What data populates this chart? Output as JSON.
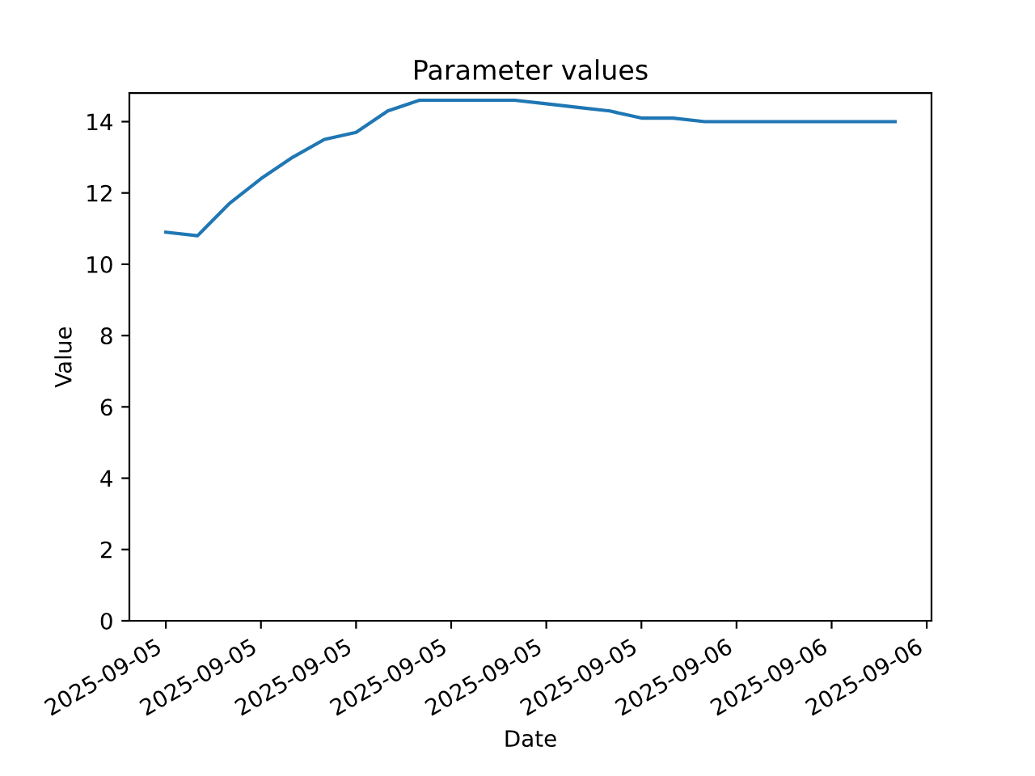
{
  "chart_data": {
    "type": "line",
    "title": "Parameter values",
    "xlabel": "Date",
    "ylabel": "Value",
    "x": [
      "2025-09-05T06:00",
      "2025-09-05T07:00",
      "2025-09-05T08:00",
      "2025-09-05T09:00",
      "2025-09-05T10:00",
      "2025-09-05T11:00",
      "2025-09-05T12:00",
      "2025-09-05T13:00",
      "2025-09-05T14:00",
      "2025-09-05T15:00",
      "2025-09-05T16:00",
      "2025-09-05T17:00",
      "2025-09-05T18:00",
      "2025-09-05T19:00",
      "2025-09-05T20:00",
      "2025-09-05T21:00",
      "2025-09-05T22:00",
      "2025-09-05T23:00",
      "2025-09-06T00:00",
      "2025-09-06T01:00",
      "2025-09-06T02:00",
      "2025-09-06T03:00",
      "2025-09-06T04:00",
      "2025-09-06T05:00"
    ],
    "series": [
      {
        "color": "#1f77b4",
        "values": [
          10.9,
          10.8,
          11.7,
          12.4,
          13.0,
          13.5,
          13.7,
          14.3,
          14.6,
          14.6,
          14.6,
          14.6,
          14.5,
          14.4,
          14.3,
          14.1,
          14.1,
          14.0,
          14.0,
          14.0,
          14.0,
          14.0,
          14.0,
          14.0
        ]
      }
    ],
    "xlim": [
      "2025-09-05T04:51",
      "2025-09-06T06:09"
    ],
    "xticks": [
      {
        "value": "2025-09-05T06:00",
        "label": "2025-09-05"
      },
      {
        "value": "2025-09-05T09:00",
        "label": "2025-09-05"
      },
      {
        "value": "2025-09-05T12:00",
        "label": "2025-09-05"
      },
      {
        "value": "2025-09-05T15:00",
        "label": "2025-09-05"
      },
      {
        "value": "2025-09-05T18:00",
        "label": "2025-09-05"
      },
      {
        "value": "2025-09-05T21:00",
        "label": "2025-09-05"
      },
      {
        "value": "2025-09-06T00:00",
        "label": "2025-09-06"
      },
      {
        "value": "2025-09-06T03:00",
        "label": "2025-09-06"
      },
      {
        "value": "2025-09-06T06:00",
        "label": "2025-09-06"
      }
    ],
    "ylim": [
      0,
      14.8
    ],
    "yticks": [
      0,
      2,
      4,
      6,
      8,
      10,
      12,
      14
    ],
    "grid": false,
    "marker": "none",
    "line_style": "solid"
  }
}
